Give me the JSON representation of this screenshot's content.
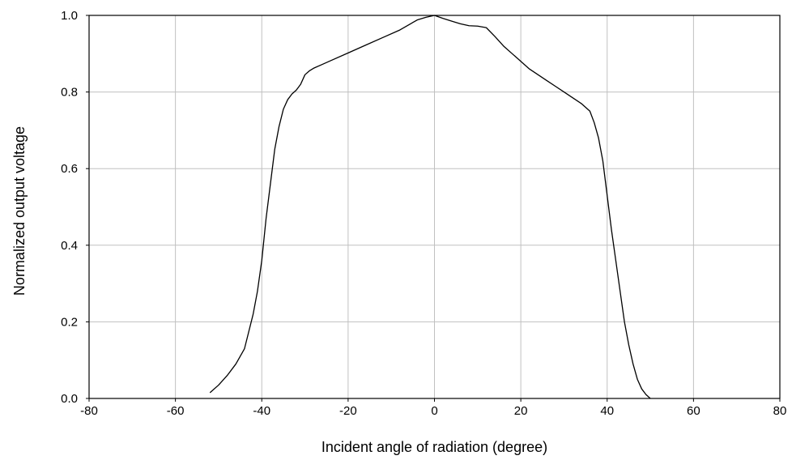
{
  "chart_data": {
    "type": "line",
    "title": "",
    "xlabel": "Incident angle of radiation (degree)",
    "ylabel": "Normalized output voltage",
    "xlim": [
      -80,
      80
    ],
    "ylim": [
      0.0,
      1.0
    ],
    "xticks": [
      -80,
      -60,
      -40,
      -20,
      0,
      20,
      40,
      60,
      80
    ],
    "yticks": [
      0.0,
      0.2,
      0.4,
      0.6,
      0.8,
      1.0
    ],
    "xtick_labels": [
      "-80",
      "-60",
      "-40",
      "-20",
      "0",
      "20",
      "40",
      "60",
      "80"
    ],
    "ytick_labels": [
      "0.0",
      "0.2",
      "0.4",
      "0.6",
      "0.8",
      "1.0"
    ],
    "grid": true,
    "line_color": "#000000",
    "grid_color": "#c0c0c0",
    "series": [
      {
        "x": [
          -52,
          -50,
          -48,
          -46,
          -44,
          -42,
          -41,
          -40,
          -39,
          -38,
          -37,
          -36,
          -35,
          -34,
          -33,
          -32,
          -31,
          -30,
          -29,
          -28,
          -26,
          -24,
          -20,
          -16,
          -12,
          -8,
          -6,
          -4,
          -2,
          0,
          2,
          4,
          6,
          8,
          10,
          12,
          14,
          16,
          18,
          20,
          22,
          24,
          26,
          28,
          30,
          32,
          34,
          36,
          37,
          38,
          39,
          40,
          41,
          42,
          43,
          44,
          45,
          46,
          47,
          48,
          49,
          50
        ],
        "y": [
          0.015,
          0.035,
          0.06,
          0.09,
          0.13,
          0.22,
          0.28,
          0.36,
          0.47,
          0.56,
          0.65,
          0.71,
          0.755,
          0.78,
          0.795,
          0.805,
          0.82,
          0.845,
          0.855,
          0.862,
          0.872,
          0.882,
          0.902,
          0.922,
          0.942,
          0.962,
          0.975,
          0.988,
          0.995,
          1.0,
          0.992,
          0.985,
          0.978,
          0.973,
          0.972,
          0.968,
          0.945,
          0.92,
          0.9,
          0.88,
          0.86,
          0.845,
          0.83,
          0.815,
          0.8,
          0.785,
          0.77,
          0.75,
          0.72,
          0.68,
          0.62,
          0.53,
          0.44,
          0.36,
          0.28,
          0.2,
          0.14,
          0.09,
          0.05,
          0.025,
          0.01,
          0.0
        ]
      }
    ]
  }
}
